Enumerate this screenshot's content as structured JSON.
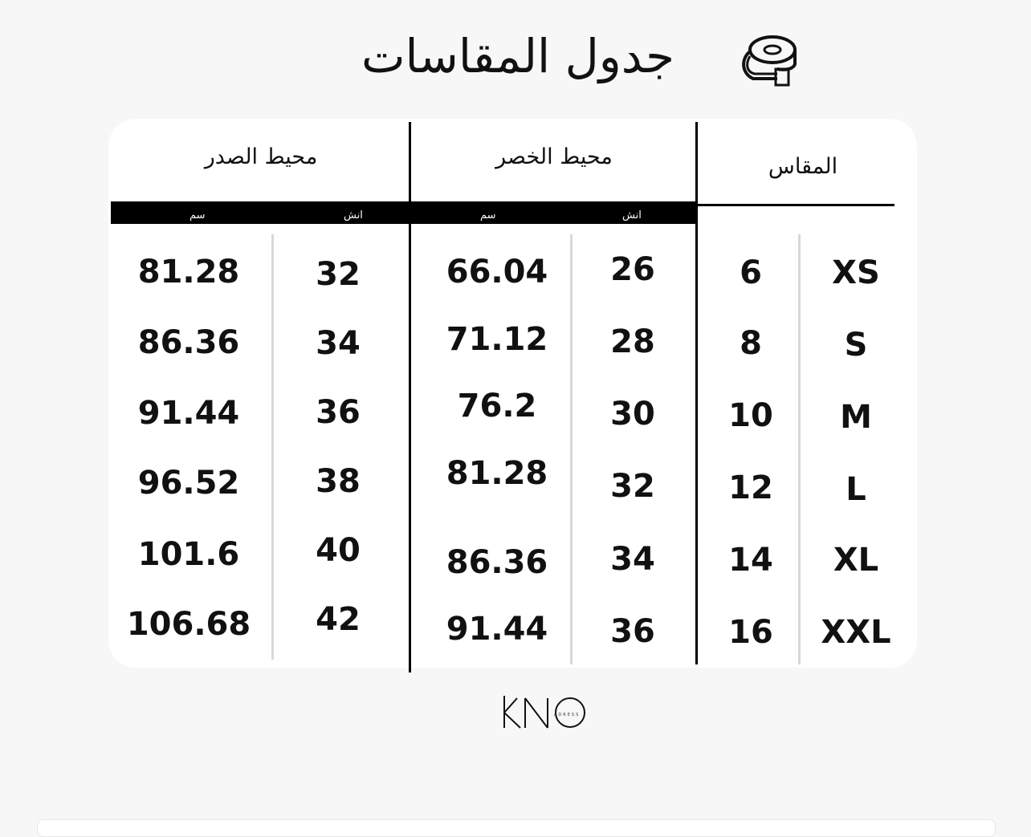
{
  "title": "جدول المقاسات",
  "title_icon": "measuring-tape-icon",
  "headers": {
    "size": "المقاس",
    "waist": "محيط الخصر",
    "chest": "محيط الصدر",
    "inch": "انش",
    "cm": "سم"
  },
  "rows": [
    {
      "size": "XS",
      "number": "6",
      "waist_in": "26",
      "waist_cm": "66.04",
      "chest_in": "32",
      "chest_cm": "81.28"
    },
    {
      "size": "S",
      "number": "8",
      "waist_in": "28",
      "waist_cm": "71.12",
      "chest_in": "34",
      "chest_cm": "86.36"
    },
    {
      "size": "M",
      "number": "10",
      "waist_in": "30",
      "waist_cm": "76.2",
      "chest_in": "36",
      "chest_cm": "91.44"
    },
    {
      "size": "L",
      "number": "12",
      "waist_in": "32",
      "waist_cm": "81.28",
      "chest_in": "38",
      "chest_cm": "96.52"
    },
    {
      "size": "XL",
      "number": "14",
      "waist_in": "34",
      "waist_cm": "86.36",
      "chest_in": "40",
      "chest_cm": "101.6"
    },
    {
      "size": "XXL",
      "number": "16",
      "waist_in": "36",
      "waist_cm": "91.44",
      "chest_in": "42",
      "chest_cm": "106.68"
    }
  ],
  "logo": {
    "main": "KNO",
    "sub": "ADRESS"
  }
}
